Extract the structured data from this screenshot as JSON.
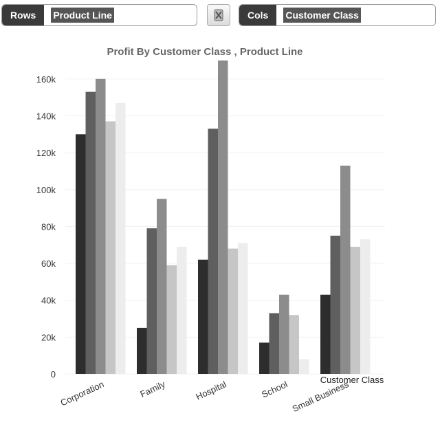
{
  "rows": {
    "tag": "Rows",
    "value": "Product Line"
  },
  "cols": {
    "tag": "Cols",
    "value": "Customer Class"
  },
  "swap_button": {
    "icon": "swap-icon"
  },
  "chart_data": {
    "type": "bar",
    "title": "Profit By Customer Class , Product Line",
    "xlabel": "Customer Class",
    "ylabel": "",
    "ylim": [
      0,
      170000
    ],
    "yticks": [
      0,
      20000,
      40000,
      60000,
      80000,
      100000,
      120000,
      140000,
      160000
    ],
    "ytick_labels": [
      "0",
      "20k",
      "40k",
      "60k",
      "80k",
      "100k",
      "120k",
      "140k",
      "160k"
    ],
    "categories": [
      "Corporation",
      "Family",
      "Hospital",
      "School",
      "Small Business"
    ],
    "series": [
      {
        "color": "#2d2d2d",
        "values": [
          130000,
          25000,
          62000,
          17000,
          43000
        ]
      },
      {
        "color": "#5f5f5f",
        "values": [
          153000,
          79000,
          133000,
          33000,
          75000
        ]
      },
      {
        "color": "#8c8c8c",
        "values": [
          160000,
          95000,
          170000,
          43000,
          113000
        ]
      },
      {
        "color": "#c6c6c6",
        "values": [
          137000,
          59000,
          68000,
          32000,
          69000
        ]
      },
      {
        "color": "#ededed",
        "values": [
          147000,
          69000,
          71000,
          8000,
          73000
        ]
      }
    ],
    "grid": true,
    "legend": "none"
  }
}
